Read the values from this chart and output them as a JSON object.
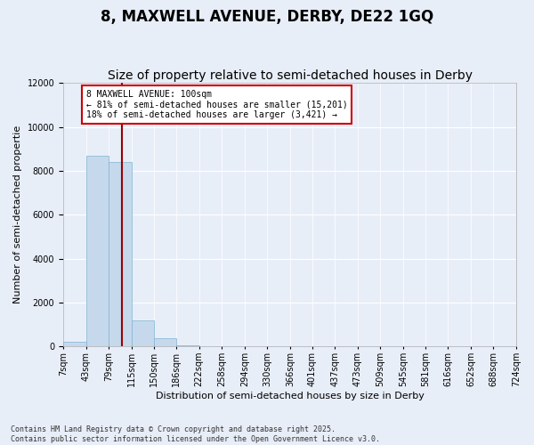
{
  "title": "8, MAXWELL AVENUE, DERBY, DE22 1GQ",
  "subtitle": "Size of property relative to semi-detached houses in Derby",
  "xlabel": "Distribution of semi-detached houses by size in Derby",
  "ylabel": "Number of semi-detached propertie",
  "bin_edges": [
    7,
    43,
    79,
    115,
    150,
    186,
    222,
    258,
    294,
    330,
    366,
    401,
    437,
    473,
    509,
    545,
    581,
    616,
    652,
    688,
    724
  ],
  "bar_heights": [
    200,
    8700,
    8400,
    1200,
    400,
    60,
    30,
    15,
    10,
    8,
    5,
    4,
    3,
    2,
    2,
    1,
    1,
    1,
    1,
    1
  ],
  "bar_color": "#c6d9ec",
  "bar_edge_color": "#7fb3d3",
  "property_size": 100,
  "annotation_title": "8 MAXWELL AVENUE: 100sqm",
  "annotation_line1": "← 81% of semi-detached houses are smaller (15,201)",
  "annotation_line2": "18% of semi-detached houses are larger (3,421) →",
  "annotation_box_color": "#ffffff",
  "annotation_border_color": "#cc0000",
  "red_line_color": "#990000",
  "ylim": [
    0,
    12000
  ],
  "background_color": "#e8eef8",
  "plot_bg_color": "#e8eef8",
  "footer_line1": "Contains HM Land Registry data © Crown copyright and database right 2025.",
  "footer_line2": "Contains public sector information licensed under the Open Government Licence v3.0.",
  "title_fontsize": 12,
  "subtitle_fontsize": 10,
  "axis_label_fontsize": 8,
  "tick_label_fontsize": 7,
  "annotation_fontsize": 7
}
